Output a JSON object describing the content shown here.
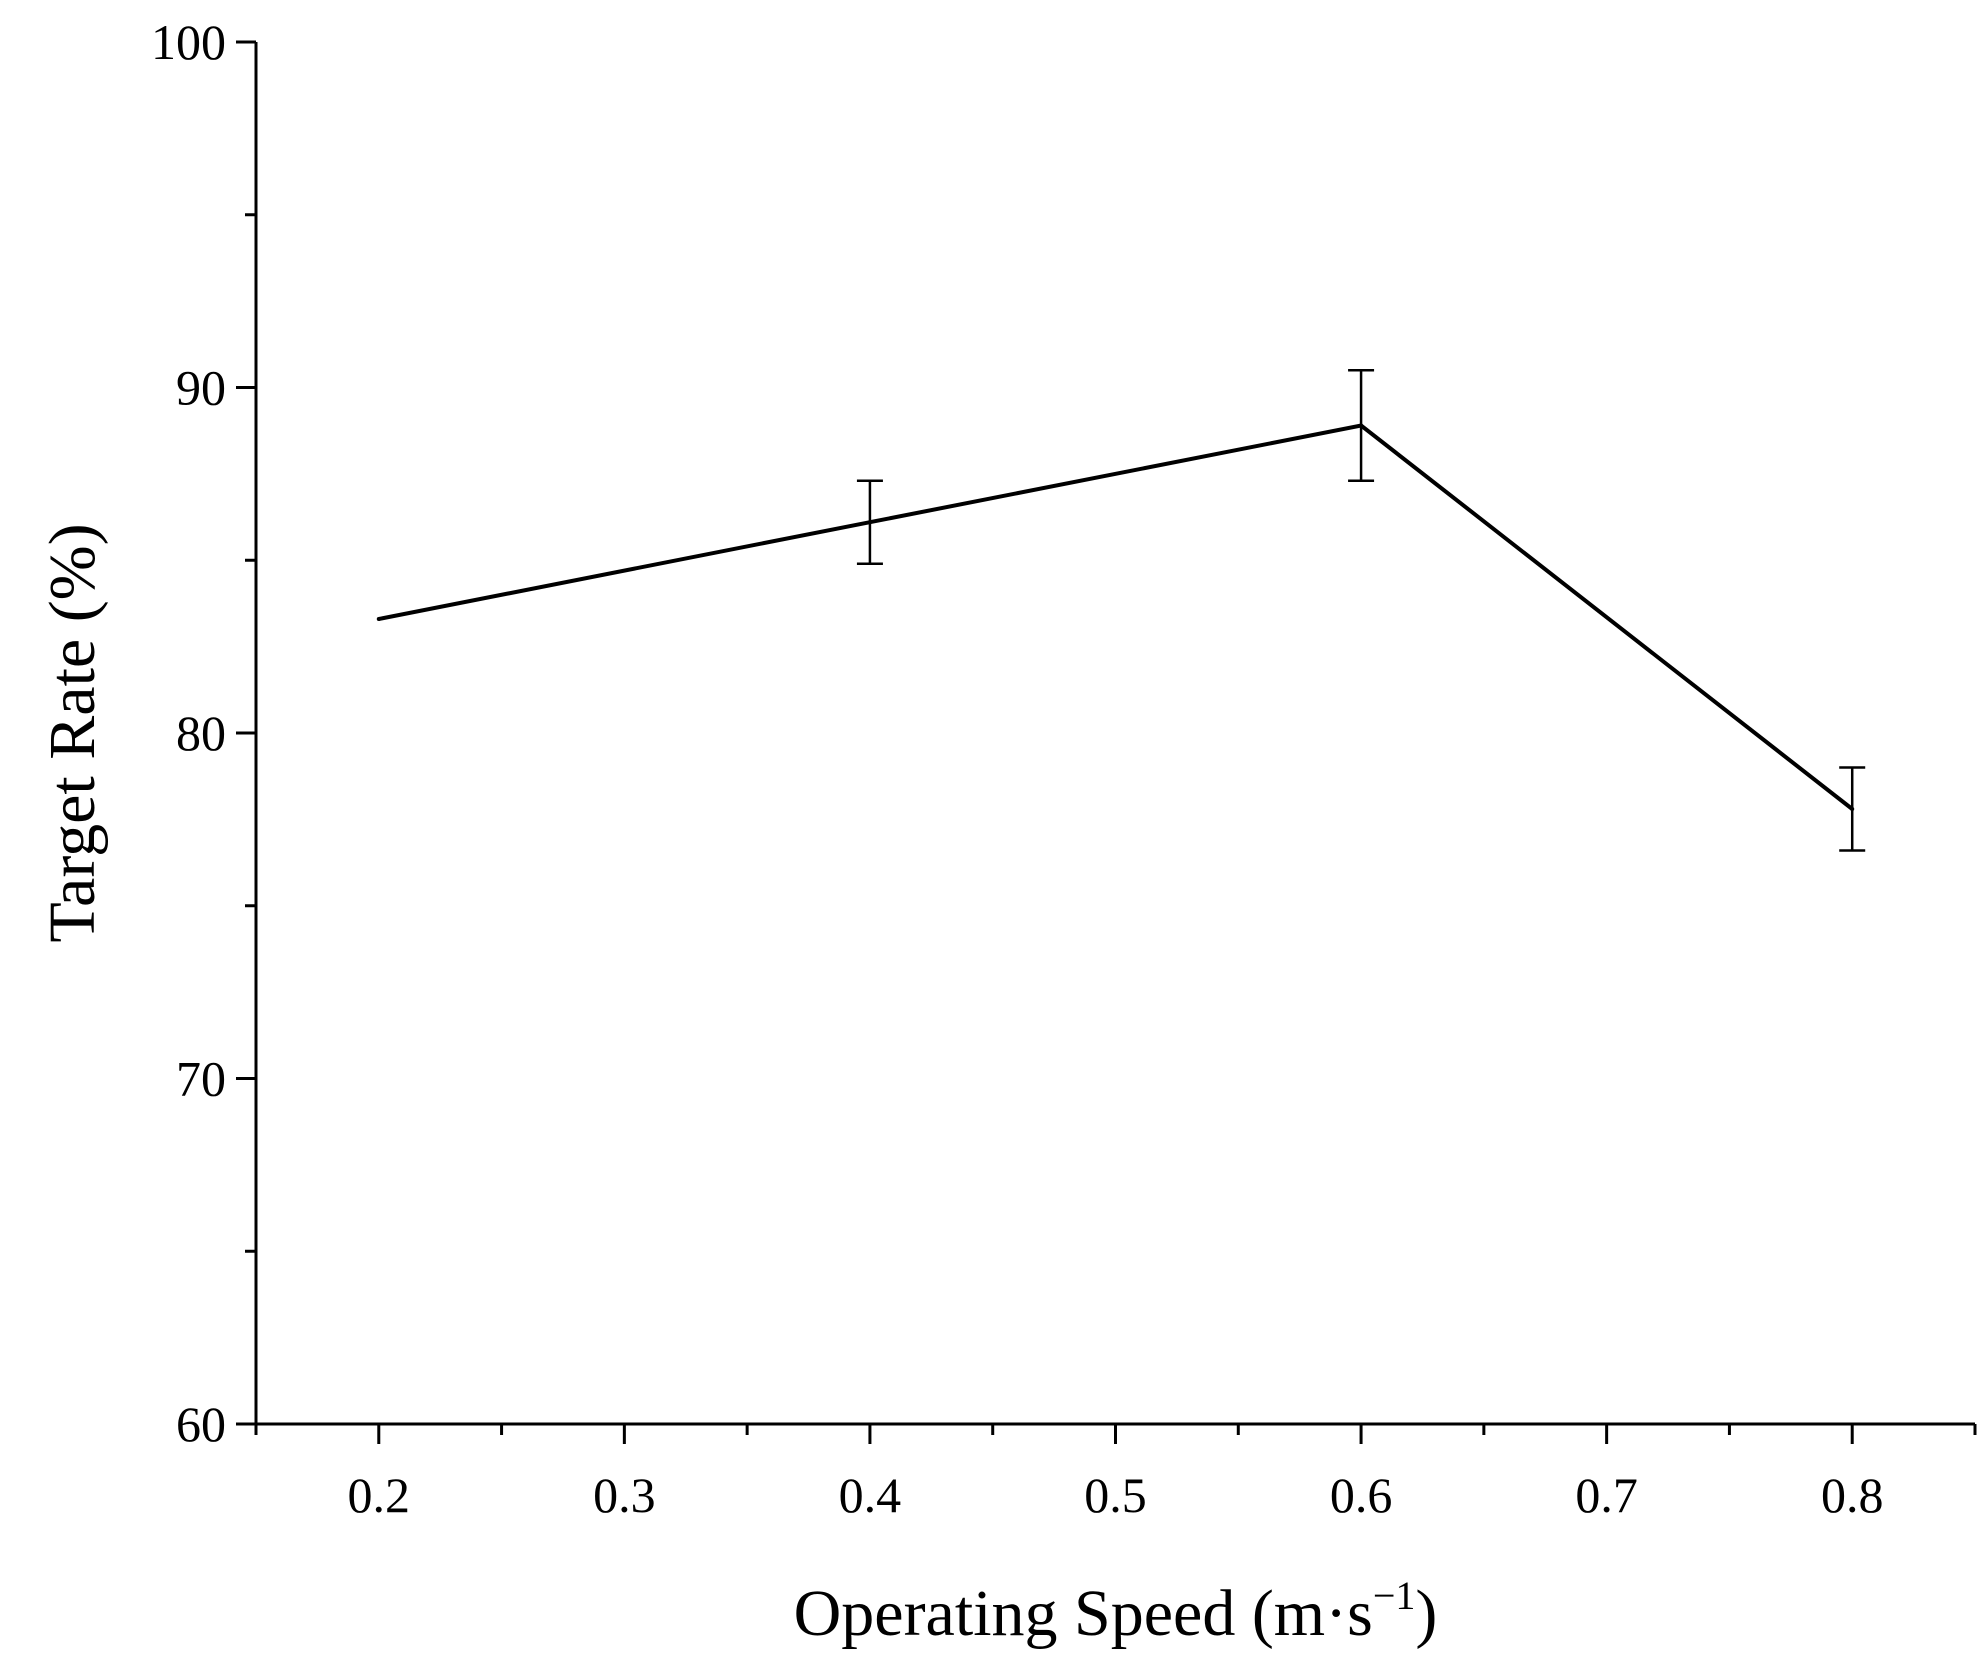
{
  "chart_data": {
    "type": "line",
    "title": "",
    "xlabel": "Operating Speed (m·s",
    "xlabel_sup": "−1",
    "xlabel_close": ")",
    "ylabel": "Target Rate (%)",
    "xlim": [
      0.15,
      0.85
    ],
    "ylim": [
      60,
      100
    ],
    "grid": false,
    "legend": "none",
    "x_ticks": [
      0.2,
      0.3,
      0.4,
      0.5,
      0.6,
      0.7,
      0.8
    ],
    "x_tick_labels": [
      "0.2",
      "0.3",
      "0.4",
      "0.5",
      "0.6",
      "0.7",
      "0.8"
    ],
    "x_minor_ticks": [
      0.15,
      0.25,
      0.35,
      0.45,
      0.55,
      0.65,
      0.75,
      0.85
    ],
    "y_ticks": [
      60,
      70,
      80,
      90,
      100
    ],
    "y_tick_labels": [
      "60",
      "70",
      "80",
      "90",
      "100"
    ],
    "y_minor_ticks": [
      65,
      75,
      85,
      95
    ],
    "series": [
      {
        "name": "Target Rate",
        "color": "#000000",
        "x": [
          0.2,
          0.4,
          0.6,
          0.8
        ],
        "values": [
          83.3,
          86.1,
          88.9,
          77.8
        ],
        "error": [
          null,
          1.2,
          1.6,
          1.2
        ]
      }
    ]
  }
}
